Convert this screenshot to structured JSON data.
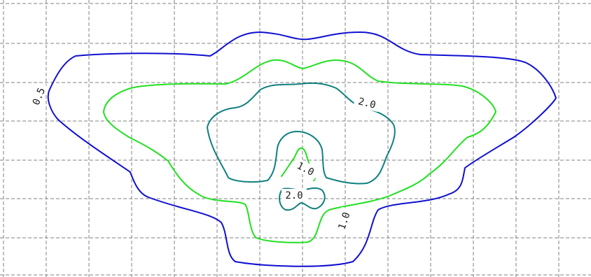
{
  "chart_data": {
    "type": "contour",
    "grid": true,
    "levels": [
      {
        "label": "0.5",
        "color": "#1010d0"
      },
      {
        "label": "1.0",
        "color": "#22e022"
      },
      {
        "label": "2.0",
        "color": "#108080"
      }
    ],
    "contour_labels": [
      "0.5",
      "2.0",
      "1.0",
      "2.0",
      "1.0"
    ]
  }
}
